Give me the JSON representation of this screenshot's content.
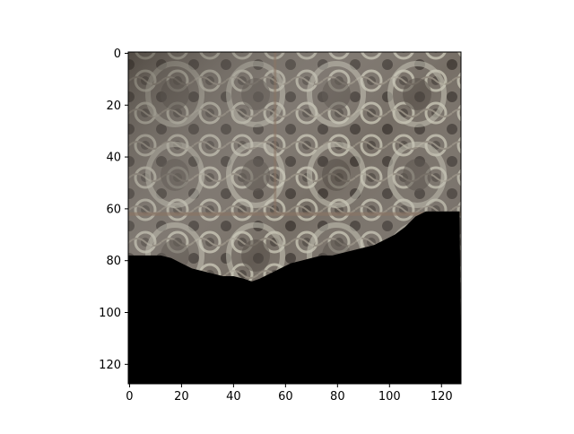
{
  "chart_data": {
    "type": "image",
    "title": "",
    "xlabel": "",
    "ylabel": "",
    "x_ticks": [
      0,
      20,
      40,
      60,
      80,
      100,
      120
    ],
    "y_ticks": [
      0,
      20,
      40,
      60,
      80,
      100,
      120
    ],
    "xlim": [
      -0.5,
      127.5
    ],
    "ylim": [
      127.5,
      -0.5
    ],
    "image_size": [
      128,
      128
    ],
    "content": "photo texture of an ornate patterned wall/ceiling, masked by a black region in the lower part",
    "mask_color": "#000000",
    "mask_boundary": {
      "x": [
        0,
        12,
        16,
        20,
        24,
        28,
        32,
        36,
        40,
        44,
        47,
        50,
        54,
        58,
        62,
        66,
        70,
        74,
        78,
        82,
        86,
        90,
        94,
        98,
        102,
        106,
        110,
        114,
        118,
        122,
        127
      ],
      "y": [
        78,
        78,
        79,
        81,
        83,
        84,
        85,
        86,
        86,
        87,
        88,
        87,
        85,
        83,
        81,
        80,
        79,
        78,
        78,
        77,
        76,
        75,
        74,
        72,
        70,
        67,
        63,
        61,
        61,
        61,
        61
      ]
    }
  }
}
